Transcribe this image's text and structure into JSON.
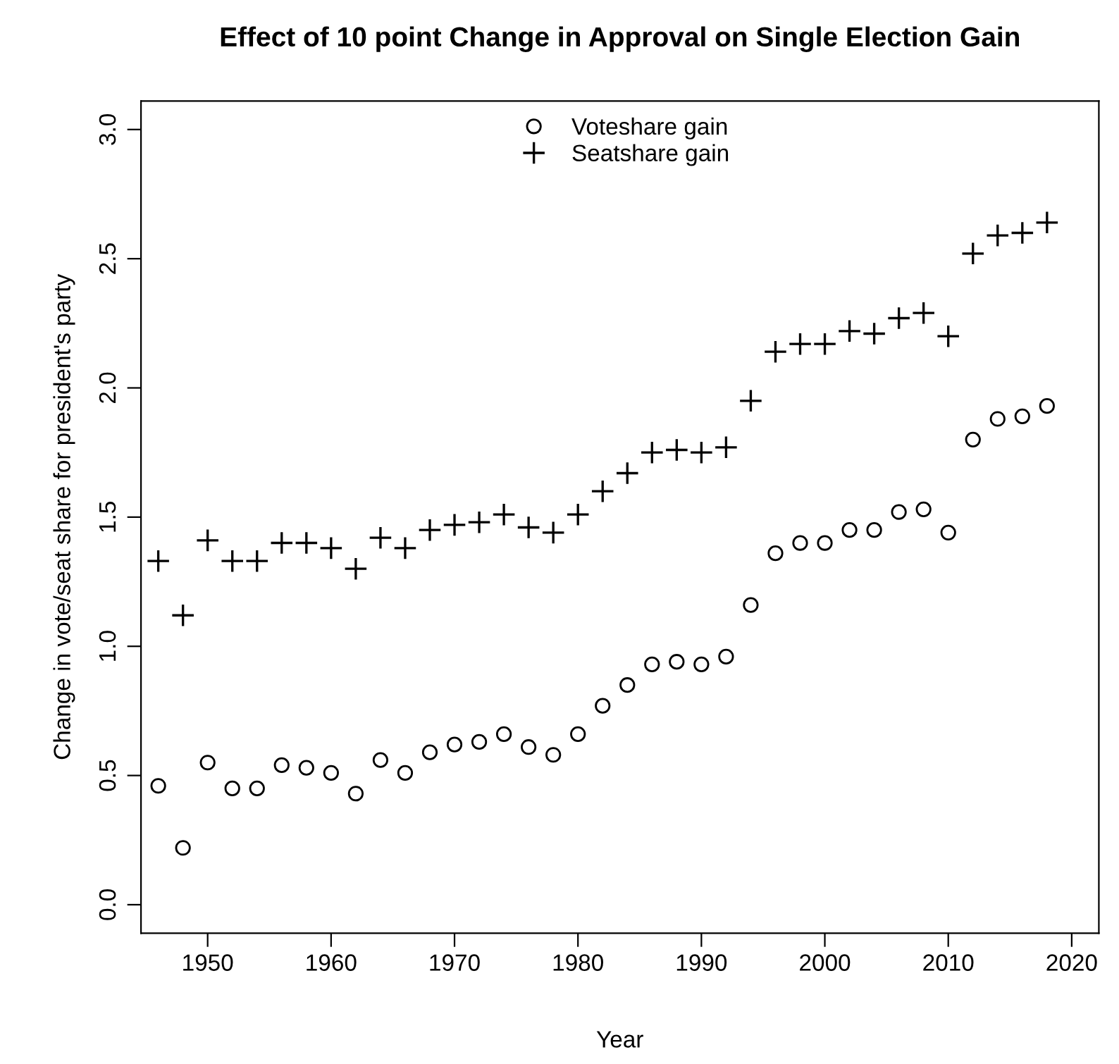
{
  "chart_data": {
    "type": "scatter",
    "title": "Effect of 10 point Change in Approval on Single Election Gain",
    "xlabel": "Year",
    "ylabel": "Change in vote/seat share for president's party",
    "x": [
      1946,
      1948,
      1950,
      1952,
      1954,
      1956,
      1958,
      1960,
      1962,
      1964,
      1966,
      1968,
      1970,
      1972,
      1974,
      1976,
      1978,
      1980,
      1982,
      1984,
      1986,
      1988,
      1990,
      1992,
      1994,
      1996,
      1998,
      2000,
      2002,
      2004,
      2006,
      2008,
      2010,
      2012,
      2014,
      2016,
      2018
    ],
    "series": [
      {
        "name": "Voteshare gain",
        "color": "#000000",
        "marker": "circle",
        "values": [
          0.46,
          0.22,
          0.55,
          0.45,
          0.45,
          0.54,
          0.53,
          0.51,
          0.43,
          0.56,
          0.51,
          0.59,
          0.62,
          0.63,
          0.66,
          0.61,
          0.58,
          0.66,
          0.77,
          0.85,
          0.93,
          0.94,
          0.93,
          0.96,
          1.16,
          1.36,
          1.4,
          1.4,
          1.45,
          1.45,
          1.52,
          1.53,
          1.44,
          1.8,
          1.88,
          1.89,
          1.93
        ]
      },
      {
        "name": "Seatshare gain",
        "color": "#000000",
        "marker": "cross",
        "values": [
          1.33,
          1.12,
          1.41,
          1.33,
          1.33,
          1.4,
          1.4,
          1.38,
          1.3,
          1.42,
          1.38,
          1.45,
          1.47,
          1.48,
          1.51,
          1.46,
          1.44,
          1.51,
          1.6,
          1.67,
          1.75,
          1.76,
          1.75,
          1.77,
          1.95,
          2.14,
          2.17,
          2.17,
          2.22,
          2.21,
          2.27,
          2.29,
          2.2,
          2.52,
          2.59,
          2.6,
          2.64
        ]
      }
    ],
    "xlim": [
      1944.6,
      2022.2
    ],
    "ylim": [
      -0.11,
      3.11
    ],
    "xticks": [
      1950,
      1960,
      1970,
      1980,
      1990,
      2000,
      2010,
      2020
    ],
    "yticks": [
      {
        "value": 0,
        "label": "0.0"
      },
      {
        "value": 0.5,
        "label": "0.5"
      },
      {
        "value": 1,
        "label": "1.0"
      },
      {
        "value": 1.5,
        "label": "1.5"
      },
      {
        "value": 2,
        "label": "2.0"
      },
      {
        "value": 2.5,
        "label": "2.5"
      },
      {
        "value": 3,
        "label": "3.0"
      }
    ],
    "grid": false,
    "legend": "top"
  }
}
